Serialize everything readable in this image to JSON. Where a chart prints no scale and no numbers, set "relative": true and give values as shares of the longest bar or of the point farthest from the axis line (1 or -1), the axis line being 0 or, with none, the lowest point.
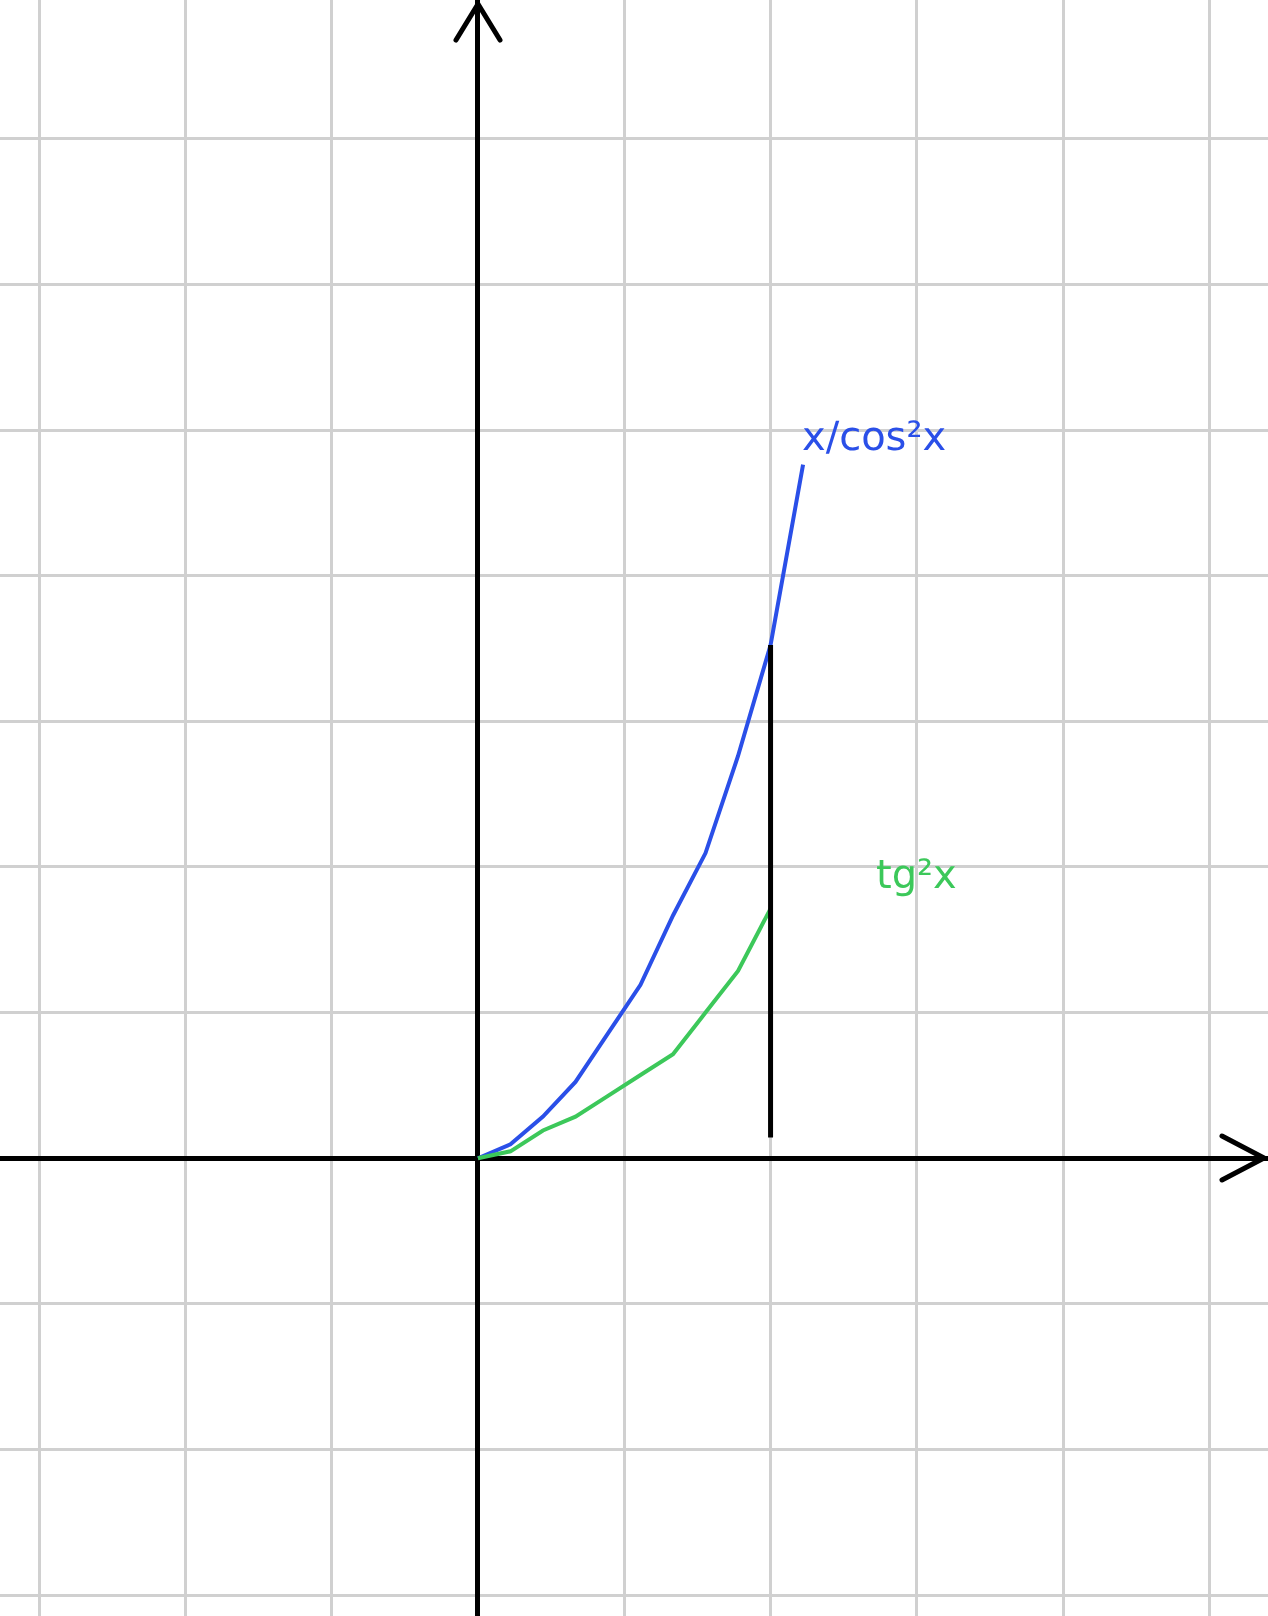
{
  "chart_data": {
    "type": "line",
    "relative": true,
    "categories": [
      null,
      null,
      null,
      null,
      null,
      null,
      null,
      null,
      null,
      null,
      null
    ],
    "series": [
      {
        "name": "x/cos²x",
        "color": "#2a4fe8",
        "values": [
          0,
          0.02,
          0.06,
          0.11,
          0.18,
          0.25,
          0.35,
          0.44,
          0.58,
          0.74,
          1
        ]
      },
      {
        "name": "tg²x",
        "color": "#3cc85a",
        "values": [
          0,
          0.01,
          0.04,
          0.06,
          0.09,
          0.12,
          0.15,
          0.21,
          0.27,
          0.36,
          null
        ]
      }
    ],
    "grid": true,
    "legend": false,
    "marker": "none",
    "line_style": "solid"
  }
}
